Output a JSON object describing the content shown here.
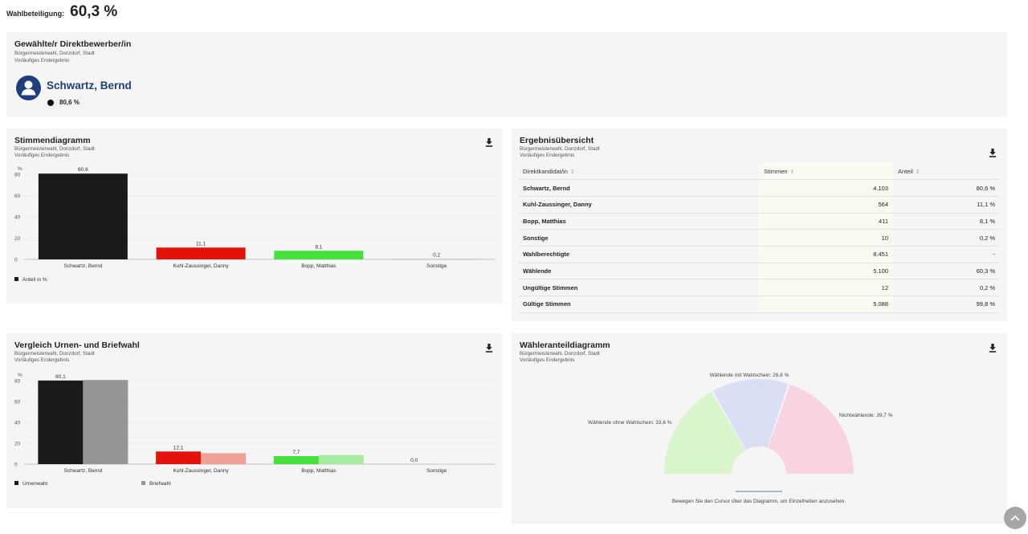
{
  "turnout": {
    "label": "Wahlbeteiligung:",
    "value": "60,3 %"
  },
  "winner": {
    "title": "Gewählte/r Direktbewerber/in",
    "subtitle": "Bürgermeisterwahl, Donzdorf, Stadt",
    "status": "Vorläufiges Endergebnis",
    "name": "Schwartz, Bernd",
    "share": "80,6 %",
    "avatar_icon": "user-circle-icon",
    "name_color": "#1e3f7e"
  },
  "vote_chart": {
    "title": "Stimmendiagramm",
    "subtitle": "Bürgermeisterwahl, Donzdorf, Stadt",
    "status": "Vorläufiges Endergebnis",
    "download_icon": "download-icon"
  },
  "compare_chart": {
    "title": "Vergleich Urnen- und Briefwahl",
    "subtitle": "Bürgermeisterwahl, Donzdorf, Stadt",
    "status": "Vorläufiges Endergebnis",
    "download_icon": "download-icon"
  },
  "table": {
    "title": "Ergebnisübersicht",
    "subtitle": "Bürgermeisterwahl, Donzdorf, Stadt",
    "status": "Vorläufiges Endergebnis",
    "download_icon": "download-icon",
    "headers": [
      "Direktkandidat/in",
      "Stimmen",
      "Anteil"
    ],
    "sort_icon": "sort-icon",
    "rows": [
      {
        "name": "Schwartz, Bernd",
        "votes": "4.103",
        "share": "80,6 %"
      },
      {
        "name": "Kuhl-Zaussinger, Danny",
        "votes": "564",
        "share": "11,1 %"
      },
      {
        "name": "Bopp, Matthias",
        "votes": "411",
        "share": "8,1 %"
      },
      {
        "name": "Sonstige",
        "votes": "10",
        "share": "0,2 %"
      }
    ],
    "stats": [
      {
        "name": "Wahlberechtigte",
        "votes": "8.451",
        "share": "-"
      },
      {
        "name": "Wählende",
        "votes": "5.100",
        "share": "60,3 %"
      },
      {
        "name": "Ungültige Stimmen",
        "votes": "12",
        "share": "0,2 %"
      },
      {
        "name": "Gültige Stimmen",
        "votes": "5.088",
        "share": "99,8 %"
      }
    ]
  },
  "voter_chart": {
    "title": "Wähleranteildiagramm",
    "subtitle": "Bürgermeisterwahl, Donzdorf, Stadt",
    "status": "Vorläufiges Endergebnis",
    "download_icon": "download-icon",
    "hint": "Bewegen Sie den Cursor über das Diagramm, um Einzelheiten anzusehen."
  },
  "scroll_top_icon": "chevron-up-icon",
  "chart_data": [
    {
      "type": "bar",
      "ylabel": "%",
      "ylim": [
        0,
        80
      ],
      "yticks": [
        0,
        20,
        40,
        60,
        80
      ],
      "categories": [
        "Schwartz, Bernd",
        "Kuhl-Zaussinger, Danny",
        "Bopp, Matthias",
        "Sonstige"
      ],
      "values": [
        80.6,
        11.1,
        8.1,
        0.2
      ],
      "value_labels": [
        "80,6",
        "11,1",
        "8,1",
        "0,2"
      ],
      "colors": [
        "#1a1a1a",
        "#e3120b",
        "#46e03c",
        "#9a9a9a"
      ],
      "legend": [
        "Anteil in %"
      ],
      "legend_position": "bottom-left",
      "grid": true
    },
    {
      "type": "bar",
      "ylabel": "%",
      "ylim": [
        0,
        80
      ],
      "yticks": [
        0,
        20,
        40,
        60,
        80
      ],
      "categories": [
        "Schwartz, Bernd",
        "Kuhl-Zaussinger, Danny",
        "Bopp, Matthias",
        "Sonstige"
      ],
      "series": [
        {
          "name": "Urnenwahl",
          "values": [
            80.1,
            12.1,
            7.7,
            0.0
          ],
          "labels": [
            "80,1",
            "12,1",
            "7,7",
            "0,0"
          ],
          "colors": [
            "#1a1a1a",
            "#e3120b",
            "#46e03c",
            "#9a9a9a"
          ]
        },
        {
          "name": "Briefwahl",
          "values": [
            80.6,
            10.5,
            8.7,
            0.2
          ],
          "colors": [
            "#959595",
            "#f0a095",
            "#a5eca0",
            "#d4d4d4"
          ]
        }
      ],
      "legend_position": "bottom-left",
      "grid": true
    },
    {
      "type": "pie",
      "variant": "semi-donut",
      "slices": [
        {
          "label": "Wählende ohne Wahlschein",
          "value": 33.6,
          "text": "Wählende ohne Wahlschein: 33,6 %",
          "color": "#d9f5cb"
        },
        {
          "label": "Wählende mit Wahlschein",
          "value": 26.8,
          "text": "Wählende mit Wahlschein: 26,8 %",
          "color": "#dbdff6"
        },
        {
          "label": "Nichtwählende",
          "value": 39.7,
          "text": "Nichtwählende: 39,7 %",
          "color": "#f7d4e0"
        }
      ]
    }
  ]
}
